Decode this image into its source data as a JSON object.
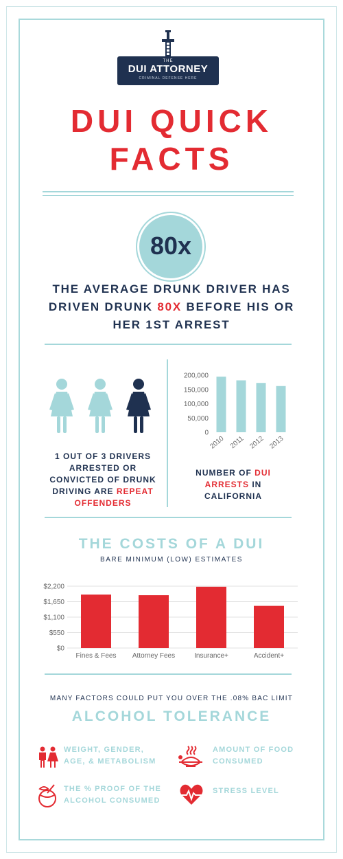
{
  "brand": {
    "the": "THE",
    "name": "DUI ATTORNEY",
    "tagline": "CRIMINAL DEFENSE HERE"
  },
  "title": {
    "line1": "DUI QUICK",
    "line2": "FACTS"
  },
  "stat": {
    "value": "80x",
    "text_before": "THE AVERAGE DRUNK DRIVER HAS DRIVEN DRUNK ",
    "highlight": "80X",
    "text_after": " BEFORE HIS OR HER 1ST ARREST"
  },
  "repeat": {
    "text_before": "1 OUT OF 3 DRIVERS ARRESTED OR CONVICTED OF DRUNK DRIVING ARE ",
    "highlight": "REPEAT OFFENDERS",
    "people_highlighted": 1,
    "people_total": 3
  },
  "arrests": {
    "text_before": "NUMBER OF ",
    "highlight": "DUI ARRESTS",
    "text_after": " IN CALIFORNIA"
  },
  "costs": {
    "title": "THE COSTS OF A DUI",
    "subtitle": "BARE MINIMUM (LOW) ESTIMATES"
  },
  "chart_data": [
    {
      "type": "bar",
      "categories": [
        "2010",
        "2011",
        "2012",
        "2013"
      ],
      "values": [
        195000,
        182000,
        173000,
        162000
      ],
      "ylim": [
        0,
        200000
      ],
      "yticks": [
        "0",
        "50,000",
        "100,000",
        "150,000",
        "200,000"
      ],
      "ytick_values": [
        0,
        50000,
        100000,
        150000,
        200000
      ],
      "color": "#a4d7da",
      "grid": false
    },
    {
      "type": "bar",
      "categories": [
        "Fines & Fees",
        "Attorney Fees",
        "Insurance+",
        "Accident+"
      ],
      "values": [
        1900,
        1880,
        2180,
        1500
      ],
      "ylim": [
        0,
        2200
      ],
      "yticks": [
        "$0",
        "$550",
        "$1,100",
        "$1,650",
        "$2,200"
      ],
      "ytick_values": [
        0,
        550,
        1100,
        1650,
        2200
      ],
      "color": "#e32b32",
      "grid": true
    }
  ],
  "factors": {
    "intro": "MANY FACTORS COULD PUT YOU OVER THE .08% BAC LIMIT",
    "title": "ALCOHOL TOLERANCE",
    "items": [
      {
        "line1": "WEIGHT, GENDER,",
        "line2": "AGE, & METABOLISM",
        "icon": "couple-icon"
      },
      {
        "line1": "AMOUNT OF FOOD",
        "line2": "CONSUMED",
        "icon": "hot-food-icon"
      },
      {
        "line1": "THE % PROOF OF THE",
        "line2": "ALCOHOL CONSUMED",
        "icon": "coconut-drink-icon"
      },
      {
        "line1": "STRESS LEVEL",
        "line2": "",
        "icon": "heartbeat-icon"
      }
    ]
  },
  "colors": {
    "navy": "#1f3150",
    "red": "#e32b32",
    "teal": "#a4d7da"
  }
}
